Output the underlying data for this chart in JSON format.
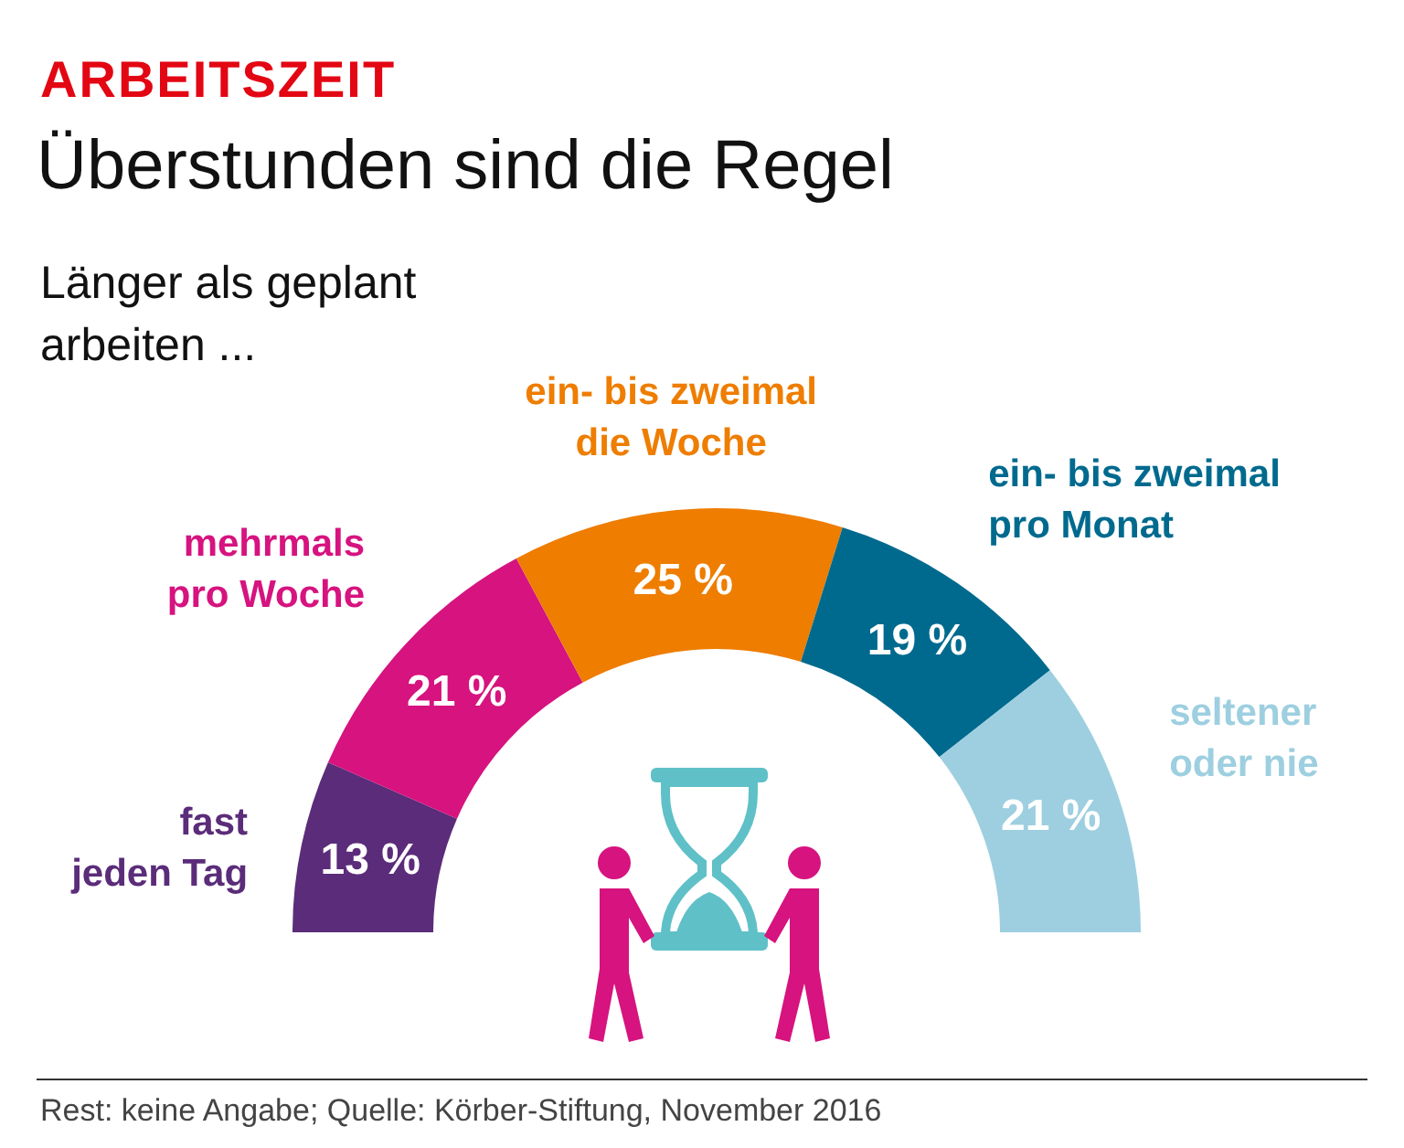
{
  "chart_data": {
    "type": "donut",
    "title": "Überstunden sind die Regel",
    "subtitle": "Länger als geplant arbeiten ...",
    "categories": [
      "fast jeden Tag",
      "mehrmals pro Woche",
      "ein- bis zweimal die Woche",
      "ein- bis zweimal pro Monat",
      "seltener oder nie"
    ],
    "values": [
      13,
      21,
      25,
      19,
      21
    ],
    "value_labels": [
      "13 %",
      "21 %",
      "25 %",
      "19 %",
      "21 %"
    ],
    "colors": [
      "#5b2c7a",
      "#d6137f",
      "#ee7d00",
      "#006a8e",
      "#9dcfe0"
    ],
    "annotations": [
      "ARBEITSZEIT",
      "Rest: keine Angabe; Quelle: Körber-Stiftung, November 2016"
    ]
  }
}
